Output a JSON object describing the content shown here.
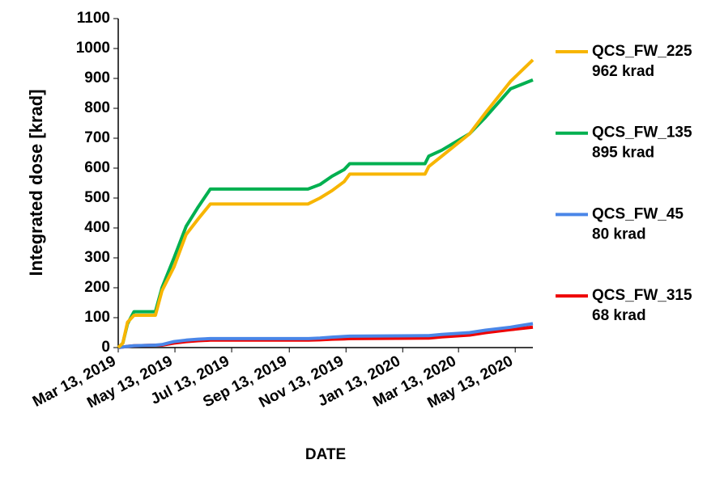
{
  "chart_data": {
    "type": "line",
    "x_label": "DATE",
    "y_label": "Integrated dose [krad]",
    "x": [
      "2019-03-13",
      "2019-03-18",
      "2019-03-23",
      "2019-03-30",
      "2019-04-22",
      "2019-04-29",
      "2019-05-12",
      "2019-05-25",
      "2019-06-07",
      "2019-06-20",
      "2019-10-03",
      "2019-10-16",
      "2019-10-29",
      "2019-11-11",
      "2019-11-17",
      "2020-02-06",
      "2020-02-10",
      "2020-02-24",
      "2020-03-25",
      "2020-04-11",
      "2020-05-08",
      "2020-06-01"
    ],
    "series": [
      {
        "name": "QCS_FW_225",
        "end_label": "962 krad",
        "color": "#f7b500",
        "values": [
          0,
          15,
          85,
          108,
          108,
          190,
          270,
          378,
          430,
          480,
          480,
          500,
          525,
          555,
          580,
          580,
          605,
          640,
          715,
          785,
          890,
          962
        ]
      },
      {
        "name": "QCS_FW_135",
        "end_label": "895 krad",
        "color": "#00b050",
        "values": [
          0,
          15,
          80,
          120,
          120,
          200,
          300,
          405,
          470,
          530,
          530,
          545,
          573,
          595,
          615,
          615,
          640,
          660,
          715,
          770,
          865,
          895
        ]
      },
      {
        "name": "QCS_FW_45",
        "end_label": "80 krad",
        "color": "#4a86e8",
        "values": [
          0,
          2,
          4,
          6,
          8,
          10,
          20,
          25,
          28,
          30,
          30,
          32,
          35,
          37,
          38,
          40,
          40,
          44,
          50,
          58,
          68,
          80
        ]
      },
      {
        "name": "QCS_FW_315",
        "end_label": "68 krad",
        "color": "#ee0000",
        "values": [
          0,
          2,
          4,
          6,
          8,
          8,
          15,
          20,
          23,
          25,
          25,
          26,
          28,
          29,
          30,
          32,
          32,
          36,
          42,
          50,
          60,
          68
        ]
      }
    ],
    "xlim": [
      "2019-03-13",
      "2020-06-01"
    ],
    "xticks": [
      {
        "value": "2019-03-13",
        "label": "Mar 13, 2019"
      },
      {
        "value": "2019-05-13",
        "label": "May 13, 2019"
      },
      {
        "value": "2019-07-13",
        "label": "Jul 13, 2019"
      },
      {
        "value": "2019-09-13",
        "label": "Sep 13, 2019"
      },
      {
        "value": "2019-11-13",
        "label": "Nov 13, 2019"
      },
      {
        "value": "2020-01-13",
        "label": "Jan 13, 2020"
      },
      {
        "value": "2020-03-13",
        "label": "Mar 13, 2020"
      },
      {
        "value": "2020-05-13",
        "label": "May 13, 2020"
      }
    ],
    "ylim": [
      0,
      1100
    ],
    "yticks": [
      0,
      100,
      200,
      300,
      400,
      500,
      600,
      700,
      800,
      900,
      1000,
      1100
    ],
    "grid": false,
    "legend": "right"
  }
}
